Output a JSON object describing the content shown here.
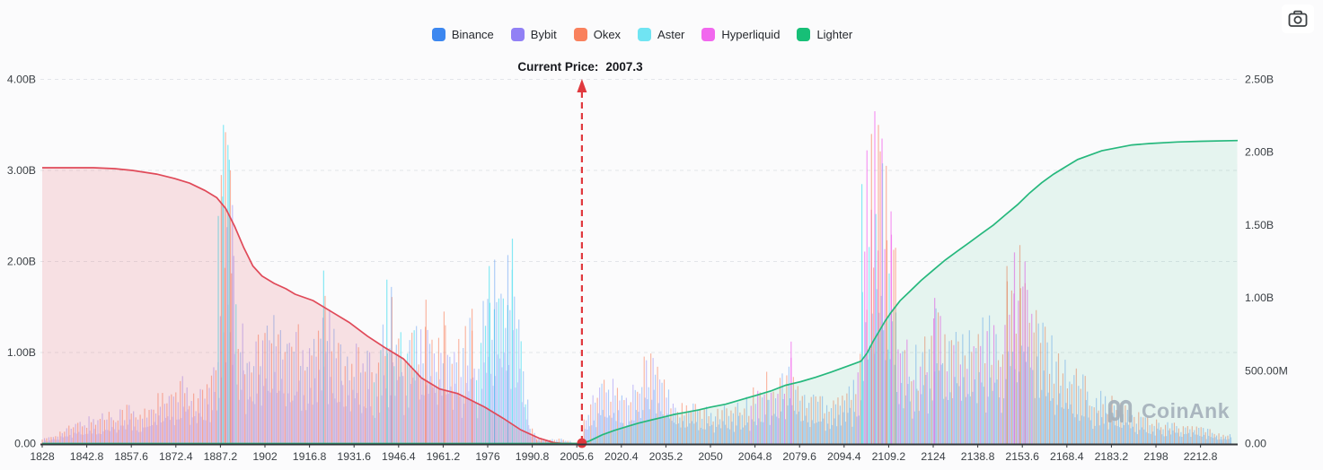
{
  "legend": {
    "items": [
      {
        "label": "Binance",
        "key": "binance",
        "color": "#3c87f0"
      },
      {
        "label": "Bybit",
        "key": "bybit",
        "color": "#9180f5"
      },
      {
        "label": "Okex",
        "key": "okex",
        "color": "#f9815d"
      },
      {
        "label": "Aster",
        "key": "aster",
        "color": "#70e4f2"
      },
      {
        "label": "Hyperliquid",
        "key": "hyperliquid",
        "color": "#f167ee"
      },
      {
        "label": "Lighter",
        "key": "lighter",
        "color": "#17bf77"
      }
    ]
  },
  "current_price": {
    "label": "Current Price:",
    "value": "2007.3"
  },
  "watermark": {
    "text": "CoinAnk"
  },
  "icons": {
    "screenshot": "camera-icon",
    "brand": "coinank-logo"
  },
  "colors": {
    "bid_line": "#e04a59",
    "bid_fill": "rgba(225,75,90,0.15)",
    "ask_line": "#26b87d",
    "ask_fill": "rgba(38,184,125,0.10)",
    "marker": "#e0393e",
    "grid": "#e3e5e9",
    "axis": "#33373b",
    "tick_text": "#3b4045"
  },
  "chart_data": {
    "type": "area",
    "title": "Aggregated order-book depth by exchange",
    "current_price": 2007.3,
    "x_axis": {
      "ticks": [
        "1828",
        "1842.8",
        "1857.6",
        "1872.4",
        "1887.2",
        "1902",
        "1916.8",
        "1931.6",
        "1946.4",
        "1961.2",
        "1976",
        "1990.8",
        "2005.6",
        "2020.4",
        "2035.2",
        "2050",
        "2064.8",
        "2079.6",
        "2094.4",
        "2109.2",
        "2124",
        "2138.8",
        "2153.6",
        "2168.4",
        "2183.2",
        "2198",
        "2212.8"
      ]
    },
    "y_axis_left": {
      "max_B": 4.0,
      "ticks": [
        {
          "label": "4.00B",
          "v": 4
        },
        {
          "label": "3.00B",
          "v": 3
        },
        {
          "label": "2.00B",
          "v": 2
        },
        {
          "label": "1.00B",
          "v": 1
        },
        {
          "label": "0.00",
          "v": 0
        }
      ]
    },
    "y_axis_right": {
      "max_B": 2.5,
      "ticks": [
        {
          "label": "2.50B",
          "v": 2.5
        },
        {
          "label": "2.00B",
          "v": 2
        },
        {
          "label": "1.50B",
          "v": 1.5
        },
        {
          "label": "1.00B",
          "v": 1
        },
        {
          "label": "500.00M",
          "v": 0.5
        },
        {
          "label": "0.00",
          "v": 0
        }
      ]
    },
    "bid_cumulative_B": [
      [
        1828,
        3.03
      ],
      [
        1845,
        3.03
      ],
      [
        1852,
        3.02
      ],
      [
        1858,
        3.0
      ],
      [
        1866,
        2.96
      ],
      [
        1872,
        2.91
      ],
      [
        1877,
        2.86
      ],
      [
        1882,
        2.78
      ],
      [
        1886,
        2.7
      ],
      [
        1889,
        2.58
      ],
      [
        1892,
        2.38
      ],
      [
        1895,
        2.15
      ],
      [
        1898,
        1.95
      ],
      [
        1901,
        1.84
      ],
      [
        1905,
        1.76
      ],
      [
        1909,
        1.7
      ],
      [
        1912,
        1.64
      ],
      [
        1918,
        1.57
      ],
      [
        1924,
        1.45
      ],
      [
        1930,
        1.33
      ],
      [
        1936,
        1.18
      ],
      [
        1942,
        1.05
      ],
      [
        1948,
        0.93
      ],
      [
        1954,
        0.72
      ],
      [
        1960,
        0.6
      ],
      [
        1966,
        0.55
      ],
      [
        1969,
        0.5
      ],
      [
        1975,
        0.4
      ],
      [
        1981,
        0.28
      ],
      [
        1987,
        0.15
      ],
      [
        1993,
        0.06
      ],
      [
        1998,
        0.01
      ],
      [
        2001,
        0.0
      ],
      [
        2007.3,
        0.0
      ]
    ],
    "ask_cumulative_B": [
      [
        1828,
        0.0
      ],
      [
        2007.3,
        0.0
      ],
      [
        2010,
        0.02
      ],
      [
        2014,
        0.06
      ],
      [
        2018,
        0.09
      ],
      [
        2022,
        0.115
      ],
      [
        2026,
        0.14
      ],
      [
        2030,
        0.16
      ],
      [
        2034,
        0.18
      ],
      [
        2038,
        0.2
      ],
      [
        2042,
        0.215
      ],
      [
        2046,
        0.23
      ],
      [
        2050,
        0.25
      ],
      [
        2055,
        0.27
      ],
      [
        2060,
        0.3
      ],
      [
        2065,
        0.33
      ],
      [
        2070,
        0.36
      ],
      [
        2075,
        0.4
      ],
      [
        2080,
        0.425
      ],
      [
        2085,
        0.455
      ],
      [
        2090,
        0.49
      ],
      [
        2094,
        0.52
      ],
      [
        2098,
        0.55
      ],
      [
        2100,
        0.565
      ],
      [
        2102,
        0.62
      ],
      [
        2104,
        0.7
      ],
      [
        2106,
        0.77
      ],
      [
        2108,
        0.84
      ],
      [
        2110,
        0.9
      ],
      [
        2113,
        0.98
      ],
      [
        2116,
        1.04
      ],
      [
        2120,
        1.12
      ],
      [
        2124,
        1.19
      ],
      [
        2128,
        1.26
      ],
      [
        2132,
        1.32
      ],
      [
        2136,
        1.38
      ],
      [
        2140,
        1.44
      ],
      [
        2144,
        1.5
      ],
      [
        2148,
        1.57
      ],
      [
        2152,
        1.64
      ],
      [
        2156,
        1.72
      ],
      [
        2160,
        1.79
      ],
      [
        2164,
        1.85
      ],
      [
        2168,
        1.9
      ],
      [
        2172,
        1.95
      ],
      [
        2176,
        1.98
      ],
      [
        2180,
        2.01
      ],
      [
        2185,
        2.03
      ],
      [
        2190,
        2.05
      ],
      [
        2196,
        2.06
      ],
      [
        2205,
        2.07
      ],
      [
        2213,
        2.075
      ],
      [
        2225,
        2.08
      ]
    ],
    "bid_color_groups": [
      [
        "okex",
        "bybit"
      ],
      [
        "aster",
        "okex",
        "bybit"
      ],
      [
        "bybit",
        "okex",
        "binance"
      ],
      [
        "binance",
        "okex",
        "aster"
      ],
      [
        "binance",
        "okex",
        "bybit"
      ],
      [
        "binance",
        "aster"
      ],
      [
        "okex",
        "binance"
      ]
    ],
    "bid_depth_envelope_B": [
      [
        1828,
        0.05,
        0
      ],
      [
        1834,
        0.15,
        0
      ],
      [
        1840,
        0.26,
        0
      ],
      [
        1846,
        0.34,
        0
      ],
      [
        1852,
        0.42,
        0
      ],
      [
        1857,
        0.47,
        0
      ],
      [
        1860,
        0.33,
        0
      ],
      [
        1864,
        0.5,
        0
      ],
      [
        1867,
        0.6,
        0
      ],
      [
        1870,
        0.55,
        0
      ],
      [
        1873,
        0.7,
        0
      ],
      [
        1876,
        0.78,
        0
      ],
      [
        1879,
        0.6,
        0
      ],
      [
        1882,
        0.68,
        0
      ],
      [
        1885,
        0.85,
        0
      ],
      [
        1887,
        1.6,
        1
      ],
      [
        1888.5,
        3.5,
        1
      ],
      [
        1890,
        3.2,
        1
      ],
      [
        1891.5,
        2.6,
        1
      ],
      [
        1893,
        1.6,
        2
      ],
      [
        1895,
        1.35,
        2
      ],
      [
        1898,
        1.25,
        2
      ],
      [
        1901,
        1.4,
        2
      ],
      [
        1904,
        1.55,
        2
      ],
      [
        1907,
        1.45,
        2
      ],
      [
        1910,
        1.35,
        2
      ],
      [
        1913,
        1.5,
        2
      ],
      [
        1916,
        1.3,
        2
      ],
      [
        1919,
        1.55,
        2
      ],
      [
        1922,
        1.9,
        2
      ],
      [
        1925,
        1.3,
        2
      ],
      [
        1928,
        1.15,
        2
      ],
      [
        1931,
        1.25,
        2
      ],
      [
        1934,
        1.1,
        2
      ],
      [
        1937,
        1.0,
        3
      ],
      [
        1940,
        1.35,
        3
      ],
      [
        1943,
        1.78,
        3
      ],
      [
        1946,
        1.4,
        3
      ],
      [
        1949,
        1.2,
        3
      ],
      [
        1952,
        1.35,
        4
      ],
      [
        1955,
        1.55,
        4
      ],
      [
        1958,
        1.2,
        4
      ],
      [
        1961,
        1.4,
        4
      ],
      [
        1964,
        1.1,
        4
      ],
      [
        1967,
        1.2,
        4
      ],
      [
        1970,
        1.45,
        4
      ],
      [
        1972,
        1.2,
        5
      ],
      [
        1974,
        1.5,
        5
      ],
      [
        1976,
        1.85,
        5
      ],
      [
        1978,
        2.0,
        5
      ],
      [
        1980,
        1.9,
        5
      ],
      [
        1982,
        1.75,
        5
      ],
      [
        1984,
        2.1,
        5
      ],
      [
        1986,
        1.6,
        5
      ],
      [
        1988,
        0.9,
        5
      ],
      [
        1990,
        0.3,
        6
      ],
      [
        1992,
        0.08,
        6
      ],
      [
        1996,
        0.05,
        6
      ],
      [
        2000,
        0.06,
        6
      ],
      [
        2004,
        0.05,
        6
      ]
    ],
    "bid_spikes_B": [
      [
        1886.5,
        2.5,
        "aster"
      ],
      [
        1887.5,
        2.95,
        "okex"
      ],
      [
        1888.2,
        3.5,
        "aster"
      ],
      [
        1888.9,
        3.42,
        "okex"
      ],
      [
        1889.7,
        3.28,
        "aster"
      ],
      [
        1890.5,
        3.0,
        "okex"
      ],
      [
        1891.2,
        2.62,
        "bybit"
      ],
      [
        1921.5,
        1.9,
        "aster"
      ],
      [
        1942.5,
        1.8,
        "aster"
      ],
      [
        1944,
        1.72,
        "binance"
      ],
      [
        1955.5,
        1.58,
        "okex"
      ],
      [
        1961.5,
        1.45,
        "okex"
      ],
      [
        1970.8,
        1.48,
        "okex"
      ],
      [
        1976.5,
        1.95,
        "aster"
      ],
      [
        1978.3,
        2.02,
        "binance"
      ],
      [
        1982.7,
        2.07,
        "binance"
      ],
      [
        1984.2,
        2.25,
        "aster"
      ]
    ],
    "ask_color_groups": [
      [
        "okex",
        "bybit",
        "binance"
      ],
      [
        "okex",
        "binance"
      ],
      [
        "hyperliquid",
        "okex",
        "binance"
      ],
      [
        "okex",
        "binance"
      ],
      [
        "hyperliquid",
        "okex",
        "aster"
      ],
      [
        "okex",
        "hyperliquid",
        "binance"
      ],
      [
        "okex",
        "hyperliquid"
      ],
      [
        "binance",
        "okex"
      ]
    ],
    "ask_depth_envelope_B": [
      [
        2008,
        0.3,
        0
      ],
      [
        2011,
        0.55,
        0
      ],
      [
        2014,
        0.75,
        0
      ],
      [
        2016,
        0.86,
        0
      ],
      [
        2018,
        0.7,
        0
      ],
      [
        2020,
        0.78,
        0
      ],
      [
        2022,
        0.55,
        0
      ],
      [
        2024,
        0.7,
        0
      ],
      [
        2026,
        0.95,
        0
      ],
      [
        2028,
        1.12,
        0
      ],
      [
        2030,
        1.08,
        0
      ],
      [
        2032,
        1.0,
        0
      ],
      [
        2034,
        0.85,
        0
      ],
      [
        2036,
        0.65,
        0
      ],
      [
        2039,
        0.5,
        1
      ],
      [
        2042,
        0.44,
        1
      ],
      [
        2045,
        0.48,
        1
      ],
      [
        2048,
        0.4,
        1
      ],
      [
        2051,
        0.43,
        1
      ],
      [
        2054,
        0.46,
        1
      ],
      [
        2057,
        0.4,
        1
      ],
      [
        2060,
        0.48,
        1
      ],
      [
        2063,
        0.55,
        2
      ],
      [
        2066,
        0.72,
        2
      ],
      [
        2069,
        0.85,
        2
      ],
      [
        2072,
        0.8,
        2
      ],
      [
        2075,
        0.9,
        2
      ],
      [
        2077,
        1.1,
        2
      ],
      [
        2079,
        0.68,
        3
      ],
      [
        2082,
        0.6,
        3
      ],
      [
        2085,
        0.68,
        3
      ],
      [
        2088,
        0.56,
        3
      ],
      [
        2091,
        0.62,
        3
      ],
      [
        2094,
        0.7,
        3
      ],
      [
        2097,
        0.75,
        3
      ],
      [
        2099,
        0.8,
        4
      ],
      [
        2101,
        2.2,
        4
      ],
      [
        2103,
        3.1,
        4
      ],
      [
        2105,
        3.6,
        4
      ],
      [
        2107,
        3.4,
        4
      ],
      [
        2109,
        2.6,
        4
      ],
      [
        2111,
        2.1,
        4
      ],
      [
        2113,
        1.6,
        5
      ],
      [
        2116,
        1.25,
        5
      ],
      [
        2119,
        1.05,
        5
      ],
      [
        2122,
        1.35,
        5
      ],
      [
        2125,
        1.58,
        5
      ],
      [
        2127,
        1.45,
        5
      ],
      [
        2130,
        1.3,
        5
      ],
      [
        2133,
        1.4,
        5
      ],
      [
        2136,
        1.25,
        5
      ],
      [
        2139,
        1.35,
        5
      ],
      [
        2142,
        1.5,
        5
      ],
      [
        2145,
        1.3,
        6
      ],
      [
        2148,
        1.75,
        6
      ],
      [
        2151,
        2.05,
        6
      ],
      [
        2153,
        2.15,
        6
      ],
      [
        2155,
        1.95,
        6
      ],
      [
        2158,
        1.6,
        7
      ],
      [
        2161,
        1.4,
        7
      ],
      [
        2164,
        1.2,
        7
      ],
      [
        2167,
        1.05,
        7
      ],
      [
        2170,
        0.95,
        7
      ],
      [
        2173,
        0.85,
        7
      ],
      [
        2176,
        0.75,
        7
      ],
      [
        2180,
        0.6,
        7
      ],
      [
        2184,
        0.52,
        7
      ],
      [
        2188,
        0.44,
        7
      ],
      [
        2192,
        0.38,
        7
      ],
      [
        2196,
        0.32,
        7
      ],
      [
        2200,
        0.28,
        7
      ],
      [
        2204,
        0.24,
        7
      ],
      [
        2208,
        0.2,
        7
      ],
      [
        2212,
        0.22,
        7
      ],
      [
        2216,
        0.16,
        7
      ],
      [
        2220,
        0.13,
        7
      ],
      [
        2223,
        0.1,
        7
      ]
    ],
    "ask_spikes_B": [
      [
        2076.8,
        1.12,
        "hyperliquid"
      ],
      [
        2100.3,
        2.85,
        "aster"
      ],
      [
        2102,
        3.22,
        "hyperliquid"
      ],
      [
        2103.5,
        3.4,
        "okex"
      ],
      [
        2104.6,
        3.65,
        "hyperliquid"
      ],
      [
        2105.8,
        3.5,
        "okex"
      ],
      [
        2107,
        3.35,
        "hyperliquid"
      ],
      [
        2108.4,
        3.05,
        "okex"
      ],
      [
        2110,
        2.55,
        "hyperliquid"
      ],
      [
        2111.5,
        2.15,
        "okex"
      ],
      [
        2124.5,
        1.6,
        "hyperliquid"
      ],
      [
        2148.5,
        1.95,
        "okex"
      ],
      [
        2151,
        2.1,
        "hyperliquid"
      ],
      [
        2152.8,
        2.18,
        "okex"
      ],
      [
        2154.5,
        2.0,
        "hyperliquid"
      ]
    ]
  }
}
